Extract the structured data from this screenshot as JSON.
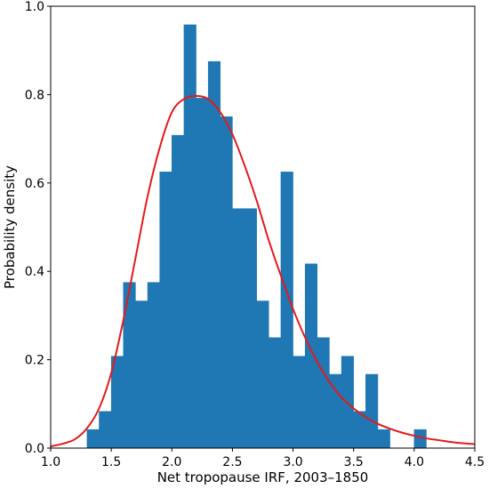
{
  "chart_data": {
    "type": "bar",
    "title": "",
    "xlabel": "Net tropopause IRF, 2003–1850",
    "ylabel": "Probability density",
    "xlim": [
      1.0,
      4.5
    ],
    "ylim": [
      0.0,
      1.0
    ],
    "xticks": [
      1.0,
      1.5,
      2.0,
      2.5,
      3.0,
      3.5,
      4.0,
      4.5
    ],
    "xtick_labels": [
      "1.0",
      "1.5",
      "2.0",
      "2.5",
      "3.0",
      "3.5",
      "4.0",
      "4.5"
    ],
    "yticks": [
      0.0,
      0.2,
      0.4,
      0.6,
      0.8,
      1.0
    ],
    "ytick_labels": [
      "0.0",
      "0.2",
      "0.4",
      "0.6",
      "0.8",
      "1.0"
    ],
    "grid": false,
    "histogram": {
      "color": "#1f77b4",
      "bin_width": 0.1,
      "bins": [
        {
          "x0": 1.3,
          "height": 0.042
        },
        {
          "x0": 1.4,
          "height": 0.083
        },
        {
          "x0": 1.5,
          "height": 0.208
        },
        {
          "x0": 1.6,
          "height": 0.375
        },
        {
          "x0": 1.7,
          "height": 0.333
        },
        {
          "x0": 1.8,
          "height": 0.375
        },
        {
          "x0": 1.9,
          "height": 0.625
        },
        {
          "x0": 2.0,
          "height": 0.708
        },
        {
          "x0": 2.1,
          "height": 0.958
        },
        {
          "x0": 2.2,
          "height": 0.792
        },
        {
          "x0": 2.3,
          "height": 0.875
        },
        {
          "x0": 2.4,
          "height": 0.75
        },
        {
          "x0": 2.5,
          "height": 0.542
        },
        {
          "x0": 2.6,
          "height": 0.542
        },
        {
          "x0": 2.7,
          "height": 0.333
        },
        {
          "x0": 2.8,
          "height": 0.25
        },
        {
          "x0": 2.9,
          "height": 0.625
        },
        {
          "x0": 3.0,
          "height": 0.208
        },
        {
          "x0": 3.1,
          "height": 0.417
        },
        {
          "x0": 3.2,
          "height": 0.25
        },
        {
          "x0": 3.3,
          "height": 0.167
        },
        {
          "x0": 3.4,
          "height": 0.208
        },
        {
          "x0": 3.5,
          "height": 0.083
        },
        {
          "x0": 3.6,
          "height": 0.167
        },
        {
          "x0": 3.7,
          "height": 0.042
        },
        {
          "x0": 4.0,
          "height": 0.042
        }
      ]
    },
    "fit_curve": {
      "type": "line",
      "color": "#e41a1c",
      "x": [
        1.0,
        1.1,
        1.2,
        1.3,
        1.4,
        1.5,
        1.6,
        1.7,
        1.8,
        1.9,
        2.0,
        2.1,
        2.2,
        2.3,
        2.4,
        2.5,
        2.6,
        2.7,
        2.8,
        2.9,
        3.0,
        3.1,
        3.2,
        3.3,
        3.4,
        3.5,
        3.6,
        3.7,
        3.8,
        3.9,
        4.0,
        4.1,
        4.2,
        4.3,
        4.4,
        4.5
      ],
      "y": [
        0.004,
        0.01,
        0.02,
        0.045,
        0.09,
        0.17,
        0.29,
        0.43,
        0.57,
        0.68,
        0.76,
        0.79,
        0.797,
        0.79,
        0.76,
        0.71,
        0.64,
        0.56,
        0.47,
        0.39,
        0.315,
        0.25,
        0.195,
        0.15,
        0.115,
        0.09,
        0.07,
        0.055,
        0.044,
        0.035,
        0.028,
        0.022,
        0.018,
        0.014,
        0.011,
        0.009
      ]
    }
  }
}
